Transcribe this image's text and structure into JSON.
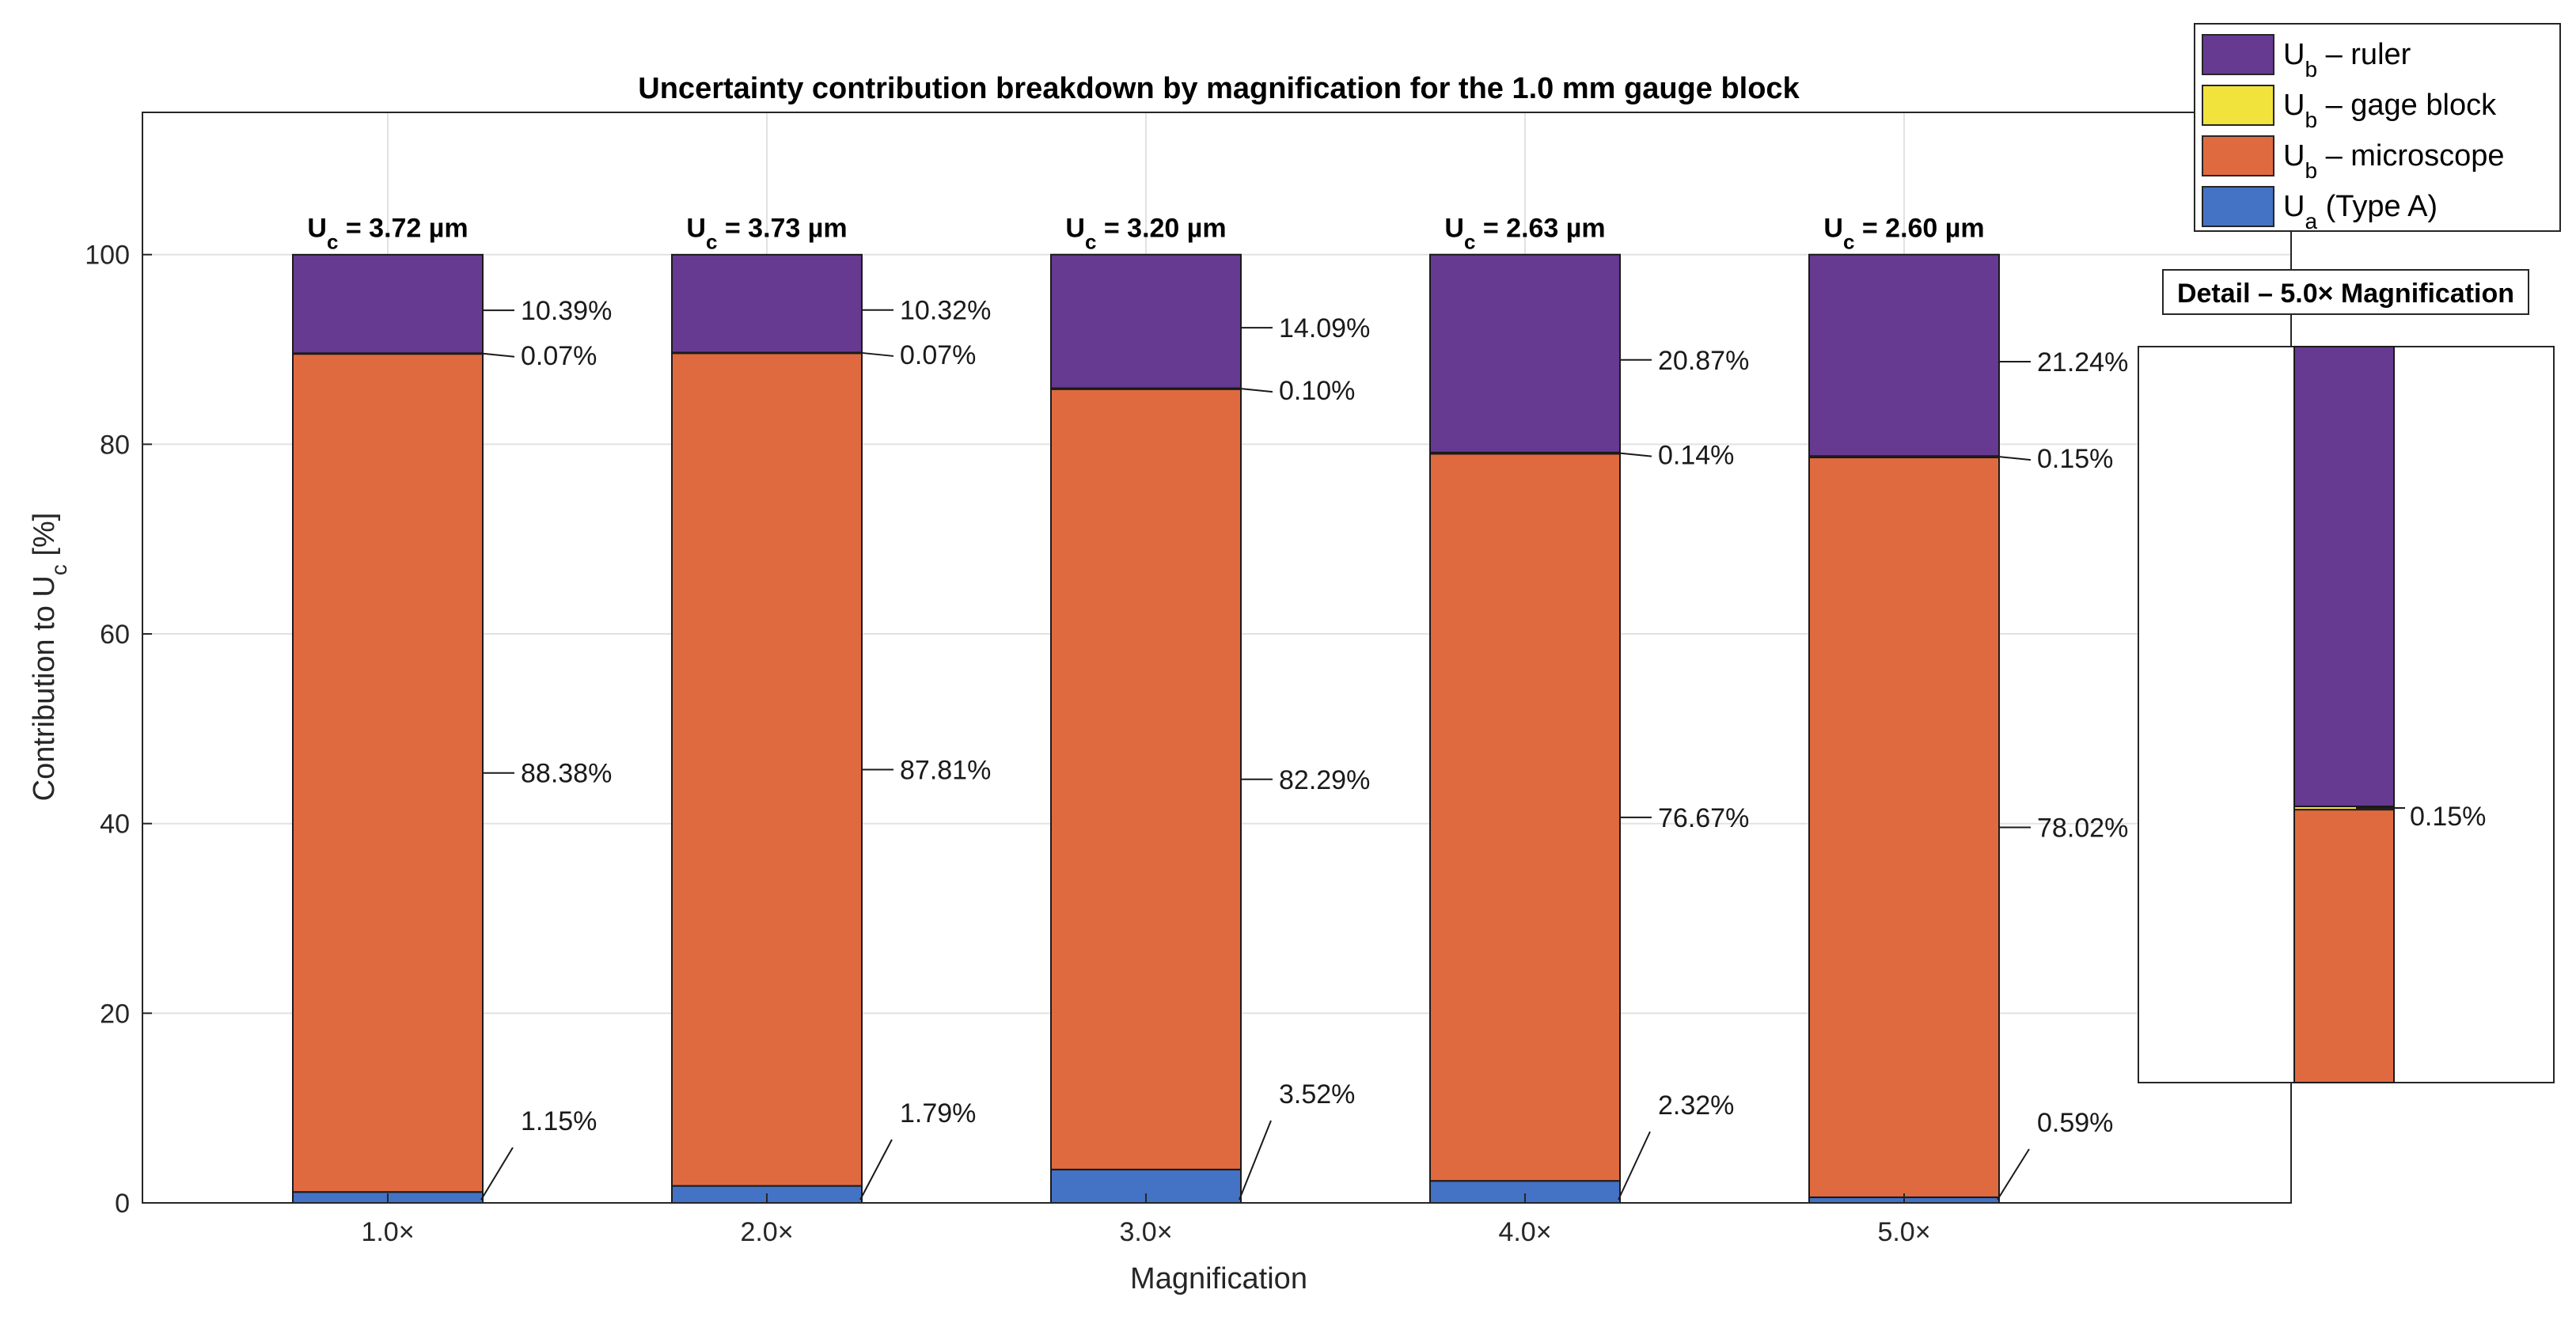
{
  "chart_data": {
    "type": "bar",
    "stacked": true,
    "title": "Uncertainty contribution breakdown by magnification for the 1.0 mm gauge block",
    "xlabel": "Magnification",
    "ylabel": "Contribution to U",
    "ylabel_sub": "c",
    "ylabel_suffix": " [%]",
    "ylim": [
      0,
      115
    ],
    "yticks": [
      0,
      20,
      40,
      60,
      80,
      100
    ],
    "grid": true,
    "categories": [
      "1.0×",
      "2.0×",
      "3.0×",
      "4.0×",
      "5.0×"
    ],
    "uc_labels": [
      {
        "main": "U",
        "sub": "c",
        "rest": " = 3.72 µm"
      },
      {
        "main": "U",
        "sub": "c",
        "rest": " = 3.73 µm"
      },
      {
        "main": "U",
        "sub": "c",
        "rest": " = 3.20 µm"
      },
      {
        "main": "U",
        "sub": "c",
        "rest": " = 2.63 µm"
      },
      {
        "main": "U",
        "sub": "c",
        "rest": " = 2.60 µm"
      }
    ],
    "series": [
      {
        "name": "U_a (Type A)",
        "color": "#4472c4",
        "values": [
          1.15,
          1.79,
          3.52,
          2.32,
          0.59
        ],
        "labels": [
          "1.15%",
          "1.79%",
          "3.52%",
          "2.32%",
          "0.59%"
        ]
      },
      {
        "name": "U_b – microscope",
        "color": "#e06a3f",
        "values": [
          88.38,
          87.81,
          82.29,
          76.67,
          78.02
        ],
        "labels": [
          "88.38%",
          "87.81%",
          "82.29%",
          "76.67%",
          "78.02%"
        ]
      },
      {
        "name": "U_b – gage block",
        "color": "#f2e23c",
        "values": [
          0.07,
          0.07,
          0.1,
          0.14,
          0.15
        ],
        "labels": [
          "0.07%",
          "0.07%",
          "0.10%",
          "0.14%",
          "0.15%"
        ]
      },
      {
        "name": "U_b – ruler",
        "color": "#663a91",
        "values": [
          10.39,
          10.32,
          14.09,
          20.87,
          21.24
        ],
        "labels": [
          "10.39%",
          "10.32%",
          "14.09%",
          "20.87%",
          "21.24%"
        ]
      }
    ],
    "legend": {
      "placement": "top-right",
      "entries": [
        {
          "main": "U",
          "sub": "b",
          "rest": " – ruler",
          "color": "#663a91"
        },
        {
          "main": "U",
          "sub": "b",
          "rest": " – gage block",
          "color": "#f2e23c"
        },
        {
          "main": "U",
          "sub": "b",
          "rest": " – microscope",
          "color": "#e06a3f"
        },
        {
          "main": "U",
          "sub": "a",
          "rest": " (Type A)",
          "color": "#4472c4"
        }
      ]
    },
    "inset": {
      "title": "Detail – 5.0× Magnification",
      "category": "5.0×",
      "label": "0.15%",
      "ylim": [
        66,
        100
      ]
    }
  }
}
